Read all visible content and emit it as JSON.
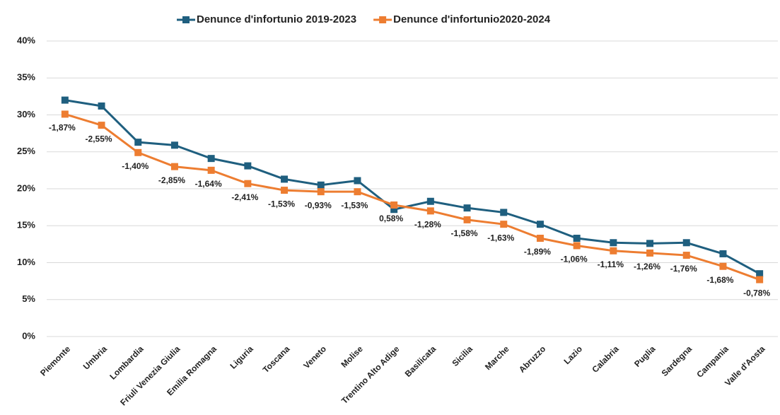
{
  "chart_data": {
    "type": "line",
    "categories": [
      "Piemonte",
      "Umbria",
      "Lombardia",
      "Friuli Venezia Giulia",
      "Emilia Romagna",
      "Liguria",
      "Toscana",
      "Veneto",
      "Molise",
      "Trentino Alto Adige",
      "Basilicata",
      "Sicilia",
      "Marche",
      "Abruzzo",
      "Lazio",
      "Calabria",
      "Puglia",
      "Sardegna",
      "Campania",
      "Valle d'Aosta"
    ],
    "series": [
      {
        "name": "Denunce d'infortunio 2019-2023",
        "color": "#1f5f7f",
        "values": [
          32.0,
          31.2,
          26.3,
          25.9,
          24.1,
          23.1,
          21.3,
          20.5,
          21.1,
          17.2,
          18.3,
          17.4,
          16.8,
          15.2,
          13.3,
          12.7,
          12.6,
          12.7,
          11.2,
          8.5
        ]
      },
      {
        "name": "Denunce d'infortunio2020-2024",
        "color": "#ed7d31",
        "values": [
          30.1,
          28.6,
          24.9,
          23.0,
          22.5,
          20.7,
          19.8,
          19.6,
          19.6,
          17.8,
          17.0,
          15.8,
          15.2,
          13.3,
          12.3,
          11.6,
          11.3,
          11.0,
          9.5,
          7.7
        ]
      }
    ],
    "annotations": [
      "-1,87%",
      "-2,55%",
      "-1,40%",
      "-2,85%",
      "-1,64%",
      "-2,41%",
      "-1,53%",
      "-0,93%",
      "-1,53%",
      "0,58%",
      "-1,28%",
      "-1,58%",
      "-1,63%",
      "-1,89%",
      "-1,06%",
      "-1,11%",
      "-1,26%",
      "-1,76%",
      "-1,68%",
      "-0,78%"
    ],
    "ylim": [
      0,
      40
    ],
    "yticks": [
      {
        "value": 0,
        "label": "0%"
      },
      {
        "value": 5,
        "label": "5%"
      },
      {
        "value": 10,
        "label": "10%"
      },
      {
        "value": 15,
        "label": "15%"
      },
      {
        "value": 20,
        "label": "20%"
      },
      {
        "value": 25,
        "label": "25%"
      },
      {
        "value": 30,
        "label": "30%"
      },
      {
        "value": 35,
        "label": "35%"
      },
      {
        "value": 40,
        "label": "40%"
      }
    ],
    "grid": true,
    "legend": "top"
  }
}
